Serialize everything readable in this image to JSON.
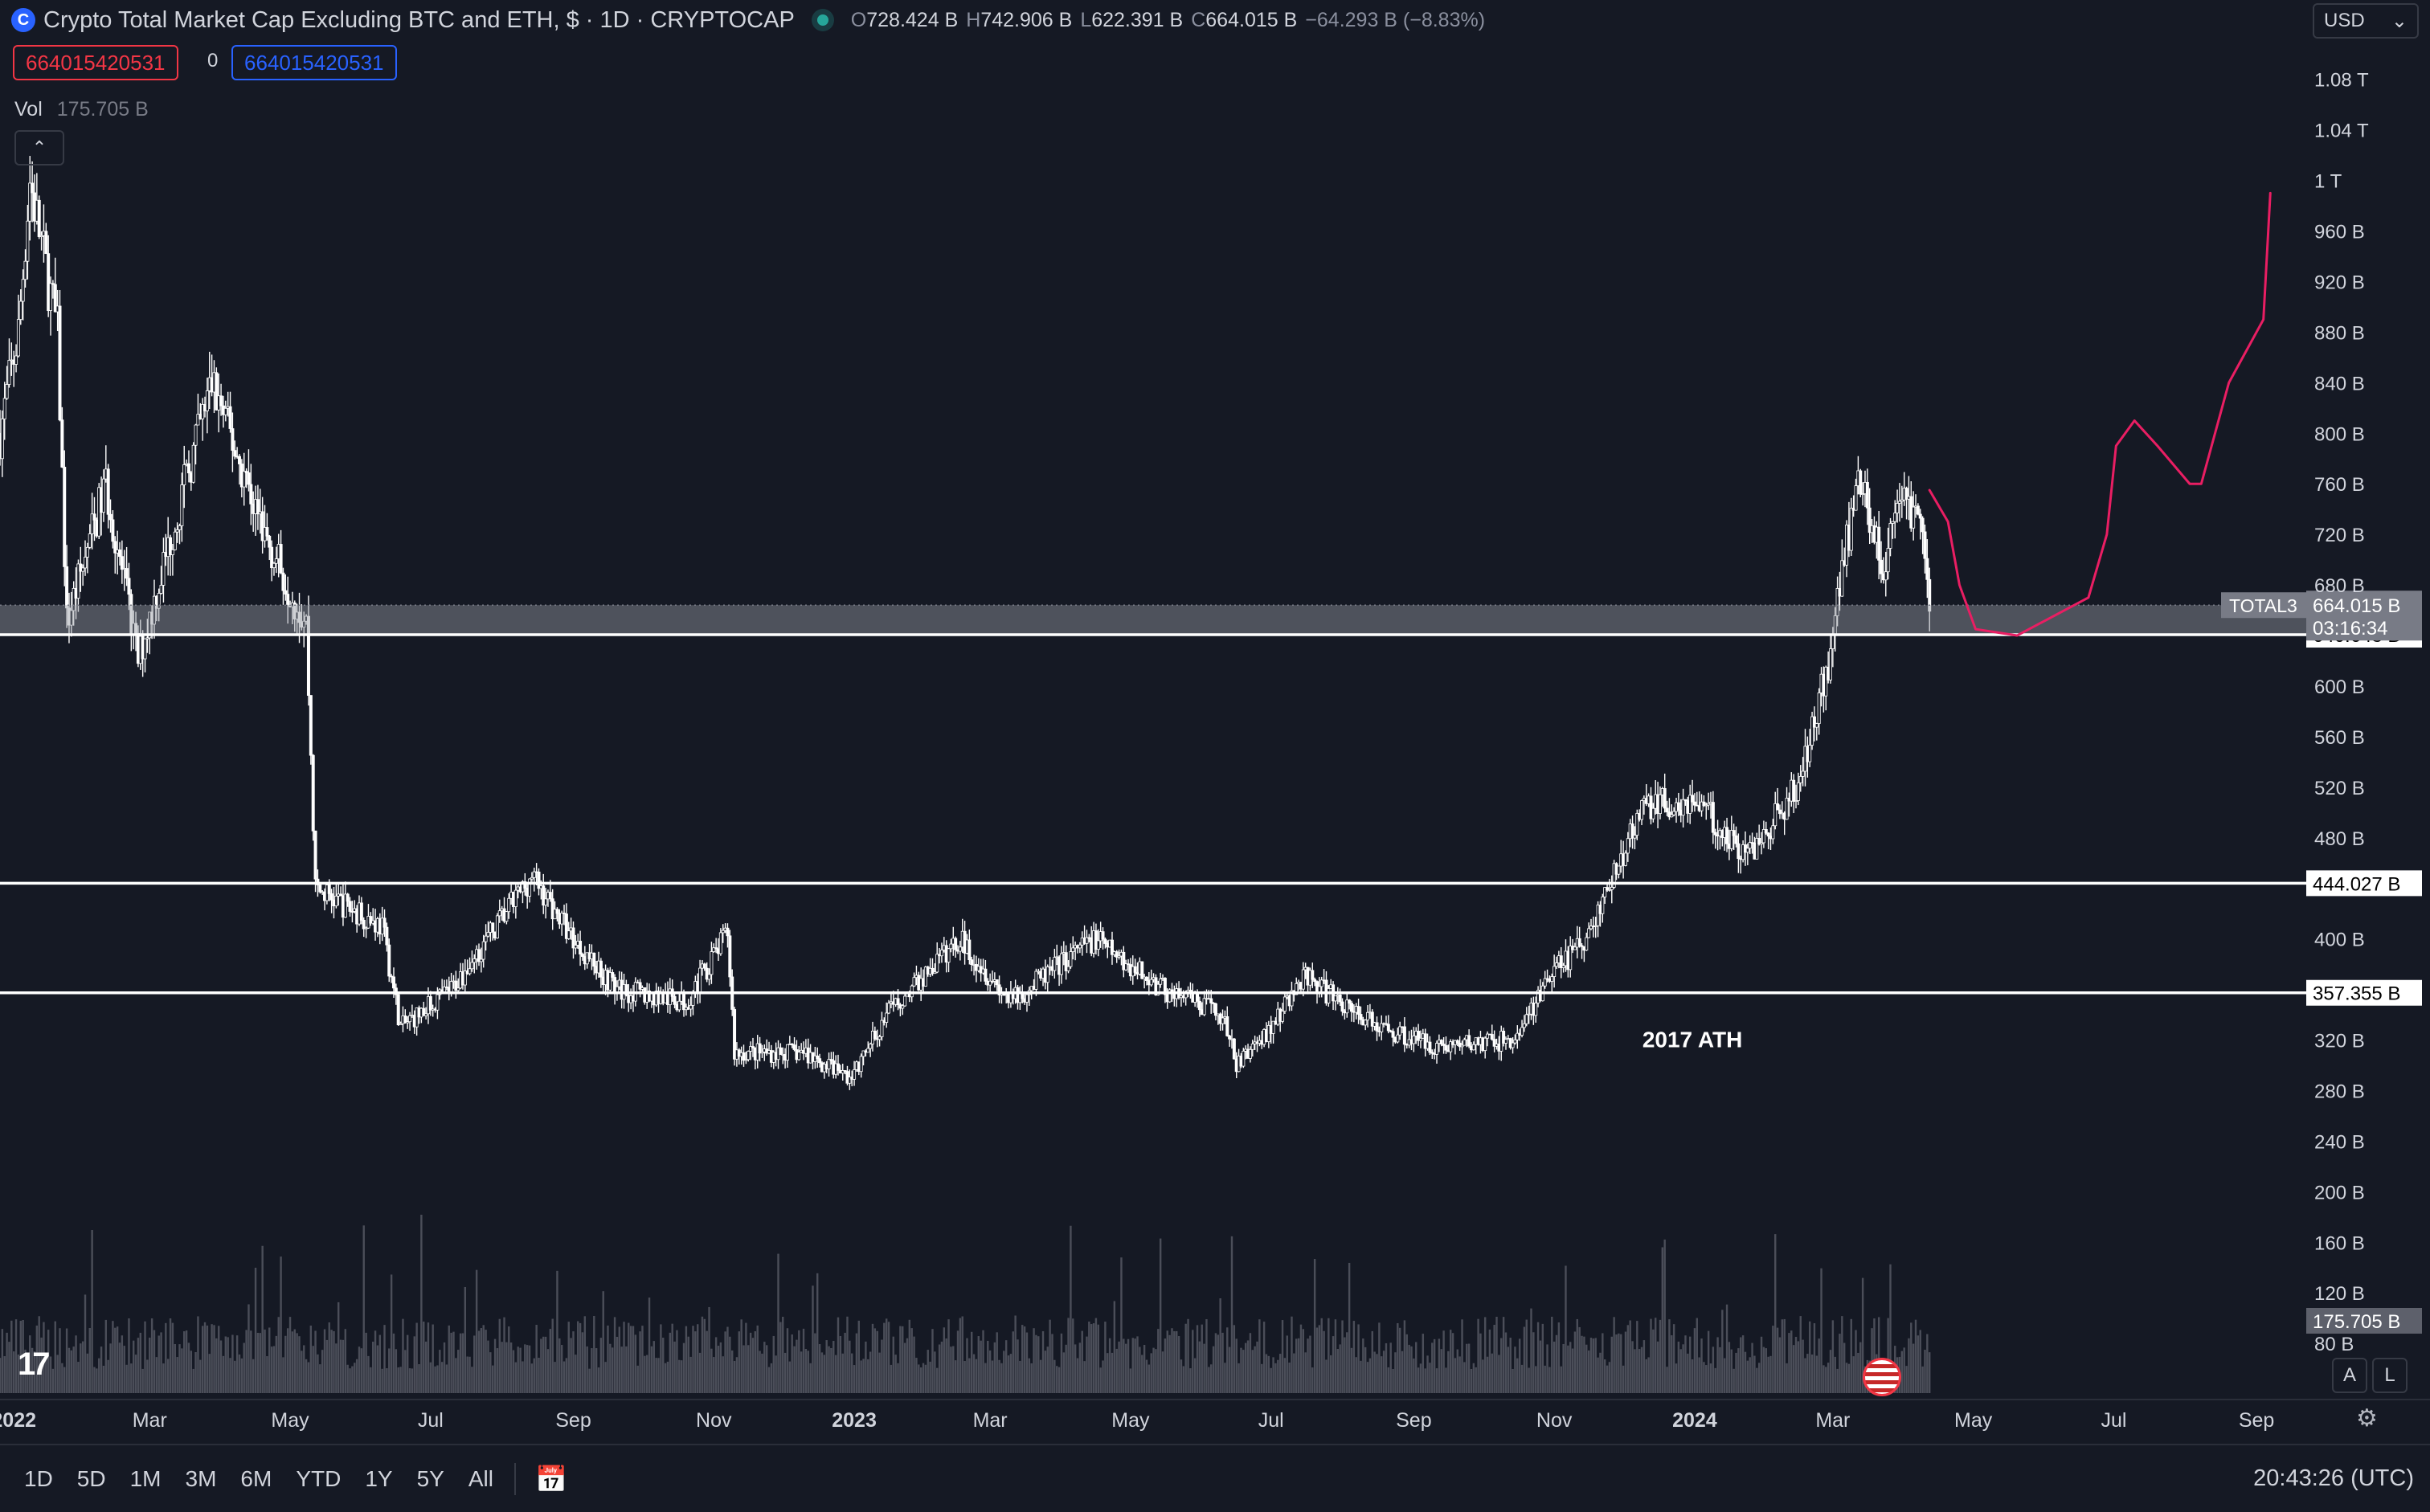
{
  "header": {
    "title": "Crypto Total Market Cap Excluding BTC and ETH, $ · 1D · CRYPTOCAP",
    "ohlc": {
      "o_label": "O",
      "o": "728.424 B",
      "h_label": "H",
      "h": "742.906 B",
      "l_label": "L",
      "l": "622.391 B",
      "c_label": "C",
      "c": "664.015 B",
      "change": "−64.293 B (−8.83%)"
    },
    "currency": "USD",
    "sell_price": "664015420531",
    "spread": "0",
    "buy_price": "664015420531"
  },
  "volume": {
    "label": "Vol",
    "value": "175.705 B"
  },
  "scale_buttons": {
    "auto": "A",
    "log": "L"
  },
  "bottom_bar": {
    "timeframes": [
      "1D",
      "5D",
      "1M",
      "3M",
      "6M",
      "YTD",
      "1Y",
      "5Y",
      "All"
    ],
    "clock": "20:43:26 (UTC)"
  },
  "colors": {
    "background": "#151924",
    "candle": "#ffffff",
    "zone": "#9598a1",
    "drawing": "#e91e63",
    "sell": "#f23645",
    "buy": "#2962ff"
  },
  "icons": [
    "cryptocap-logo",
    "live-status-icon",
    "chevron-down-icon",
    "chevron-up-icon",
    "tradingview-logo-icon",
    "settings-icon",
    "calendar-range-icon",
    "us-flag-icon"
  ],
  "chart_data": {
    "type": "candlestick",
    "title": "Crypto Total Market Cap Excluding BTC and ETH",
    "symbol": "TOTAL3",
    "interval": "1D",
    "x_ticks": [
      "2022",
      "Mar",
      "May",
      "Jul",
      "Sep",
      "Nov",
      "2023",
      "Mar",
      "May",
      "Jul",
      "Sep",
      "Nov",
      "2024",
      "Mar",
      "May",
      "Jul",
      "Sep"
    ],
    "y_ticks": [
      "1.08 T",
      "1.04 T",
      "1 T",
      "960 B",
      "920 B",
      "880 B",
      "840 B",
      "800 B",
      "760 B",
      "720 B",
      "680 B",
      "600 B",
      "560 B",
      "520 B",
      "480 B",
      "400 B",
      "320 B",
      "280 B",
      "240 B",
      "200 B",
      "160 B",
      "120 B",
      "80 B"
    ],
    "ylim_billion": [
      75,
      1090
    ],
    "x_range": [
      "2021-12-26",
      "2024-09-24"
    ],
    "price_path_billion": [
      [
        "2021-12-26",
        800
      ],
      [
        "2022-01-03",
        880
      ],
      [
        "2022-01-08",
        1000
      ],
      [
        "2022-01-20",
        880
      ],
      [
        "2022-01-24",
        650
      ],
      [
        "2022-02-10",
        760
      ],
      [
        "2022-02-24",
        620
      ],
      [
        "2022-03-28",
        840
      ],
      [
        "2022-04-20",
        720
      ],
      [
        "2022-05-08",
        650
      ],
      [
        "2022-05-12",
        440
      ],
      [
        "2022-06-10",
        410
      ],
      [
        "2022-06-18",
        330
      ],
      [
        "2022-07-10",
        360
      ],
      [
        "2022-08-14",
        450
      ],
      [
        "2022-09-01",
        400
      ],
      [
        "2022-09-20",
        360
      ],
      [
        "2022-10-20",
        350
      ],
      [
        "2022-11-07",
        405
      ],
      [
        "2022-11-10",
        310
      ],
      [
        "2022-12-10",
        310
      ],
      [
        "2022-12-31",
        290
      ],
      [
        "2023-01-15",
        340
      ],
      [
        "2023-02-16",
        400
      ],
      [
        "2023-03-10",
        350
      ],
      [
        "2023-04-15",
        400
      ],
      [
        "2023-05-15",
        360
      ],
      [
        "2023-06-10",
        340
      ],
      [
        "2023-06-16",
        300
      ],
      [
        "2023-07-01",
        330
      ],
      [
        "2023-07-15",
        370
      ],
      [
        "2023-08-17",
        330
      ],
      [
        "2023-09-12",
        315
      ],
      [
        "2023-10-15",
        320
      ],
      [
        "2023-10-30",
        370
      ],
      [
        "2023-11-15",
        400
      ],
      [
        "2023-12-10",
        505
      ],
      [
        "2024-01-01",
        510
      ],
      [
        "2024-01-23",
        465
      ],
      [
        "2024-02-15",
        520
      ],
      [
        "2024-02-28",
        620
      ],
      [
        "2024-03-05",
        700
      ],
      [
        "2024-03-14",
        770
      ],
      [
        "2024-03-22",
        690
      ],
      [
        "2024-04-01",
        750
      ],
      [
        "2024-04-08",
        730
      ],
      [
        "2024-04-12",
        664
      ]
    ],
    "current_price": "664.015 B",
    "countdown": "03:16:34",
    "horizontal_levels": [
      "640.648 B",
      "444.027 B",
      "357.355 B"
    ],
    "zone_billion": [
      640.648,
      664.015
    ],
    "annotation": "2017 ATH",
    "volume_last": "175.705 B",
    "projection_path_billion": [
      [
        "2024-04-12",
        755
      ],
      [
        "2024-04-20",
        730
      ],
      [
        "2024-04-25",
        680
      ],
      [
        "2024-05-02",
        645
      ],
      [
        "2024-05-20",
        640
      ],
      [
        "2024-06-20",
        670
      ],
      [
        "2024-06-28",
        720
      ],
      [
        "2024-07-02",
        790
      ],
      [
        "2024-07-10",
        810
      ],
      [
        "2024-07-20",
        790
      ],
      [
        "2024-08-03",
        760
      ],
      [
        "2024-08-08",
        760
      ],
      [
        "2024-08-20",
        840
      ],
      [
        "2024-09-04",
        890
      ],
      [
        "2024-09-07",
        990
      ]
    ]
  }
}
